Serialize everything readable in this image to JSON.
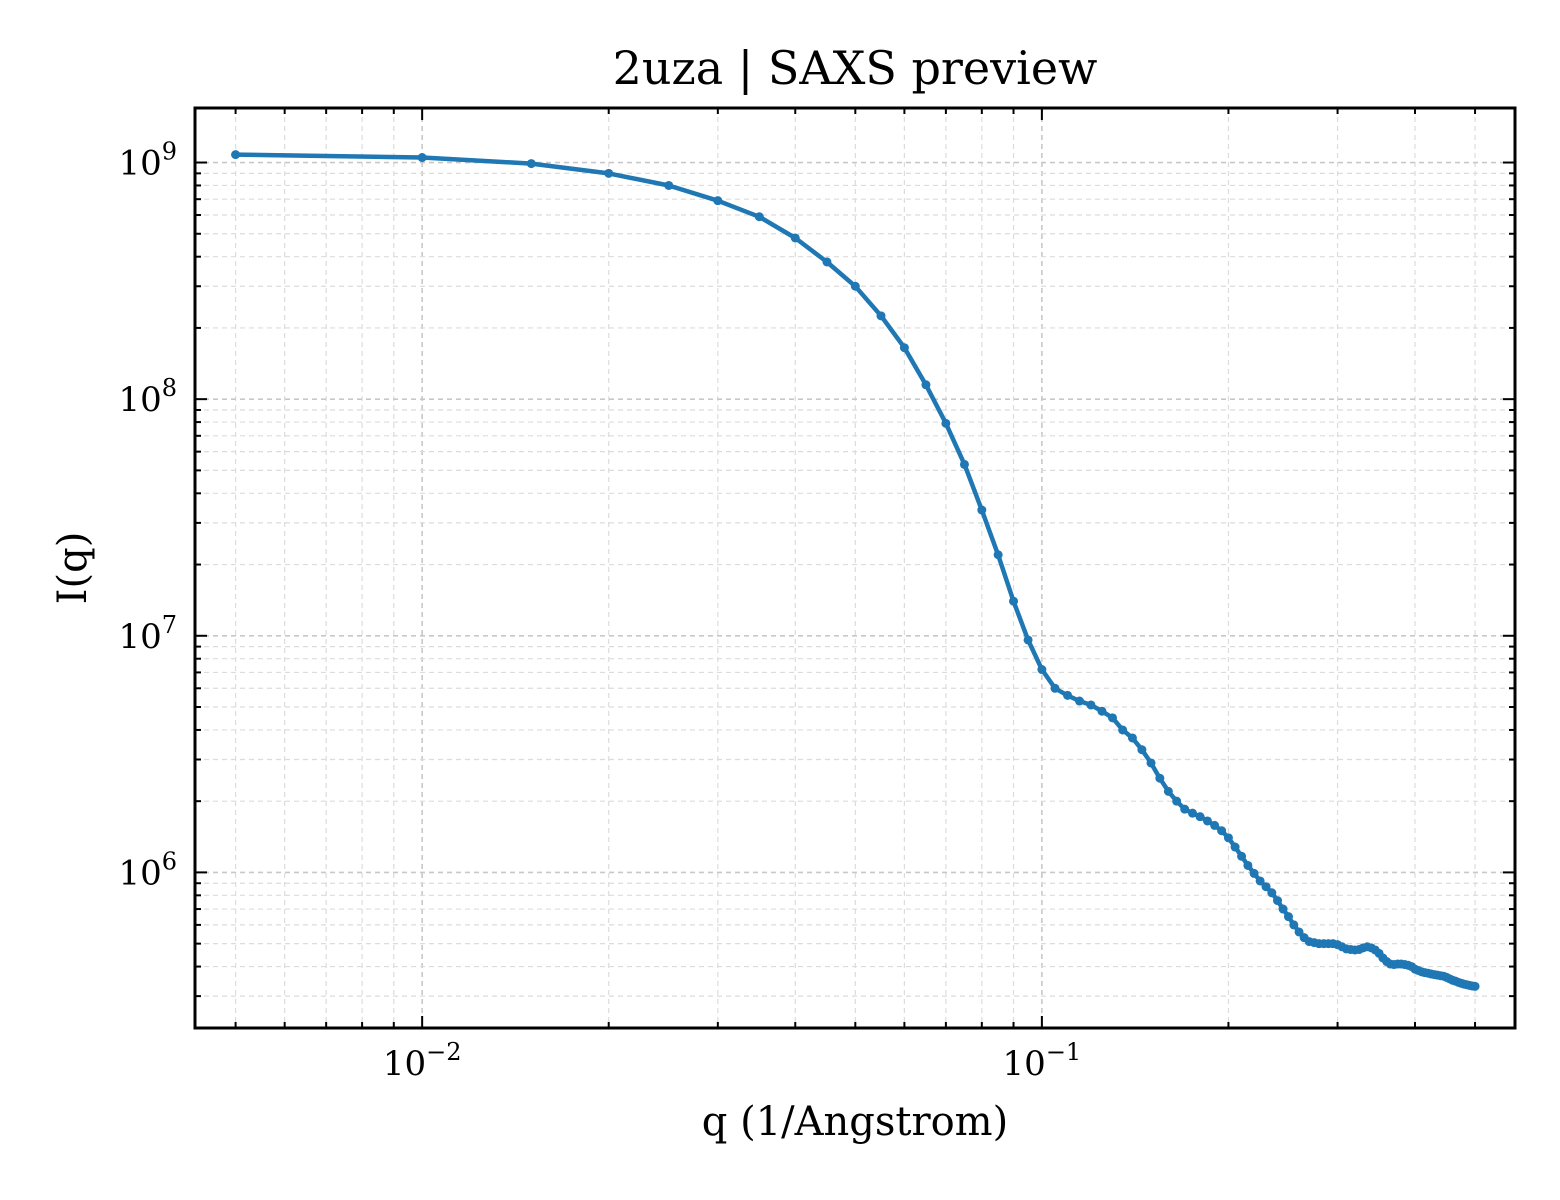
{
  "chart_data": {
    "type": "line",
    "title": "2uza | SAXS preview",
    "xlabel": "q (1/Angstrom)",
    "ylabel": "I(q)",
    "x_scale": "log",
    "y_scale": "log",
    "xlim": [
      0.0043,
      0.58
    ],
    "ylim": [
      220000,
      1700000000
    ],
    "x_ticks": [
      {
        "value": 0.01,
        "base": "10",
        "exp": "−2"
      },
      {
        "value": 0.1,
        "base": "10",
        "exp": "−1"
      }
    ],
    "y_ticks": [
      {
        "value": 1000000,
        "base": "10",
        "exp": "6"
      },
      {
        "value": 10000000,
        "base": "10",
        "exp": "7"
      },
      {
        "value": 100000000,
        "base": "10",
        "exp": "8"
      },
      {
        "value": 1000000000,
        "base": "10",
        "exp": "9"
      }
    ],
    "grid": true,
    "series_color": "#1f77b4",
    "series": [
      {
        "x": [
          0.005,
          0.01,
          0.015,
          0.02,
          0.025,
          0.03,
          0.035,
          0.04,
          0.045,
          0.05,
          0.055,
          0.06,
          0.065,
          0.07,
          0.075,
          0.08,
          0.085,
          0.09,
          0.095,
          0.1,
          0.105,
          0.11,
          0.115,
          0.12,
          0.125,
          0.13,
          0.135,
          0.14,
          0.145,
          0.15,
          0.155,
          0.16,
          0.165,
          0.17,
          0.175,
          0.18,
          0.185,
          0.19,
          0.195,
          0.2,
          0.205,
          0.21,
          0.215,
          0.22,
          0.225,
          0.23,
          0.235,
          0.24,
          0.245,
          0.25,
          0.255,
          0.26,
          0.265,
          0.27,
          0.275,
          0.28,
          0.285,
          0.29,
          0.295,
          0.3,
          0.305,
          0.31,
          0.315,
          0.32,
          0.325,
          0.33,
          0.335,
          0.34,
          0.345,
          0.35,
          0.355,
          0.36,
          0.365,
          0.37,
          0.375,
          0.38,
          0.385,
          0.39,
          0.395,
          0.4,
          0.405,
          0.41,
          0.415,
          0.42,
          0.425,
          0.43,
          0.435,
          0.44,
          0.445,
          0.45,
          0.455,
          0.46,
          0.465,
          0.47,
          0.475,
          0.48,
          0.485,
          0.49,
          0.495,
          0.5
        ],
        "y": [
          1080000000.0,
          1050000000.0,
          990000000.0,
          900000000.0,
          800000000.0,
          690000000.0,
          590000000.0,
          480000000.0,
          380000000.0,
          300000000.0,
          225000000.0,
          165000000.0,
          115000000.0,
          79000000.0,
          53000000.0,
          34000000.0,
          22000000.0,
          14000000.0,
          9600000.0,
          7200000.0,
          6000000.0,
          5600000.0,
          5300000.0,
          5100000.0,
          4800000.0,
          4500000.0,
          4000000.0,
          3700000.0,
          3300000.0,
          2900000.0,
          2500000.0,
          2200000.0,
          2000000.0,
          1850000.0,
          1780000.0,
          1720000.0,
          1650000.0,
          1580000.0,
          1500000.0,
          1400000.0,
          1280000.0,
          1170000.0,
          1070000.0,
          990000.0,
          920000.0,
          870000.0,
          820000.0,
          760000.0,
          700000.0,
          650000.0,
          600000.0,
          560000.0,
          530000.0,
          510000.0,
          505000.0,
          500000.0,
          500000.0,
          500000.0,
          500000.0,
          495000.0,
          485000.0,
          475000.0,
          472000.0,
          470000.0,
          472000.0,
          480000.0,
          485000.0,
          480000.0,
          470000.0,
          455000.0,
          435000.0,
          420000.0,
          410000.0,
          408000.0,
          410000.0,
          410000.0,
          408000.0,
          405000.0,
          400000.0,
          390000.0,
          385000.0,
          380000.0,
          377000.0,
          375000.0,
          372000.0,
          370000.0,
          368000.0,
          366000.0,
          364000.0,
          360000.0,
          355000.0,
          350000.0,
          347000.0,
          343000.0,
          340000.0,
          337000.0,
          335000.0,
          333000.0,
          331000.0,
          330000.0
        ]
      }
    ]
  }
}
